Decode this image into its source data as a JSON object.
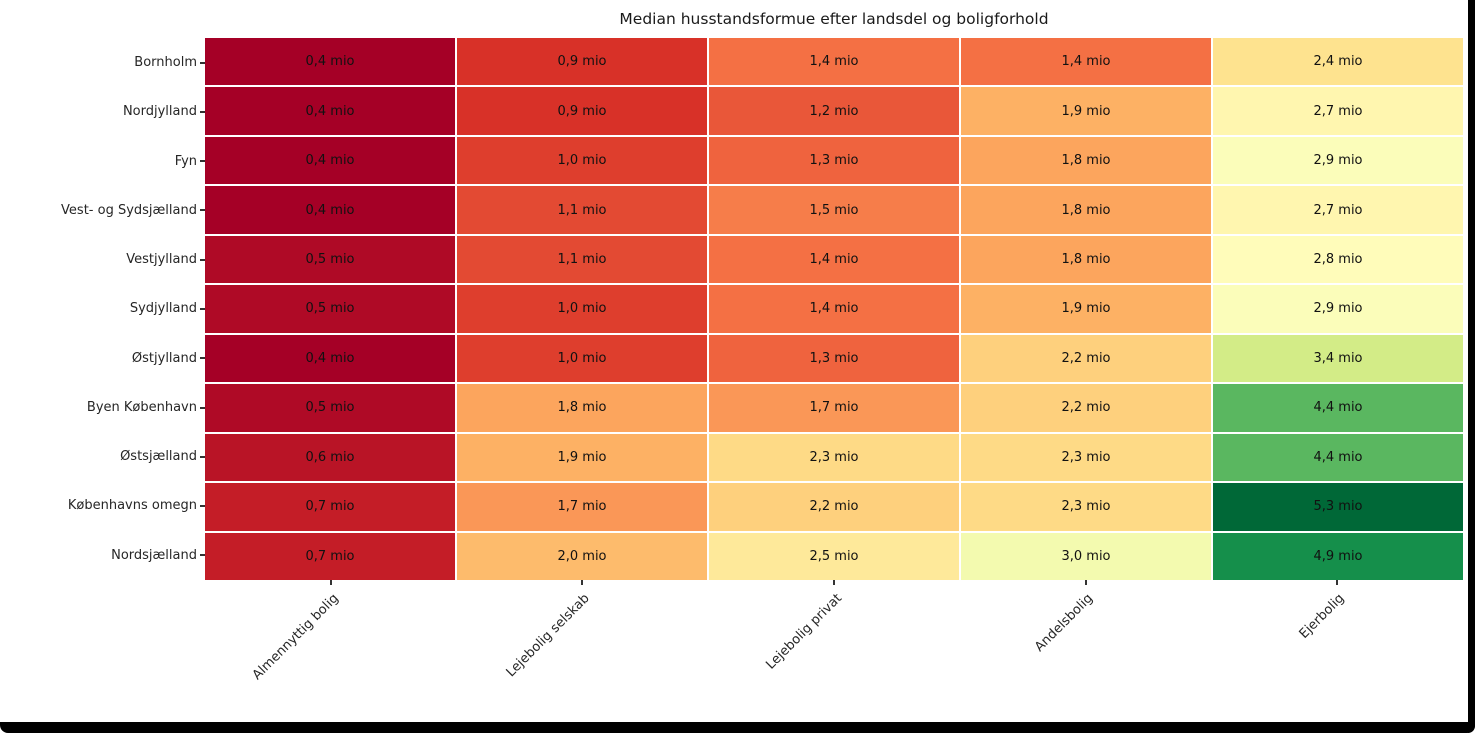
{
  "chart_data": {
    "type": "heatmap",
    "title": "Median husstandsformue efter landsdel og boligforhold",
    "rows": [
      "Bornholm",
      "Nordjylland",
      "Fyn",
      "Vest- og Sydsjælland",
      "Vestjylland",
      "Sydjylland",
      "Østjylland",
      "Byen København",
      "Østsjælland",
      "Københavns omegn",
      "Nordsjælland"
    ],
    "columns": [
      "Almennyttig bolig",
      "Lejebolig selskab",
      "Lejebolig privat",
      "Andelsbolig",
      "Ejerbolig"
    ],
    "values": [
      [
        0.4,
        0.9,
        1.4,
        1.4,
        2.4
      ],
      [
        0.4,
        0.9,
        1.2,
        1.9,
        2.7
      ],
      [
        0.4,
        1.0,
        1.3,
        1.8,
        2.9
      ],
      [
        0.4,
        1.1,
        1.5,
        1.8,
        2.7
      ],
      [
        0.5,
        1.1,
        1.4,
        1.8,
        2.8
      ],
      [
        0.5,
        1.0,
        1.4,
        1.9,
        2.9
      ],
      [
        0.4,
        1.0,
        1.3,
        2.2,
        3.4
      ],
      [
        0.5,
        1.8,
        1.7,
        2.2,
        4.4
      ],
      [
        0.6,
        1.9,
        2.3,
        2.3,
        4.4
      ],
      [
        0.7,
        1.7,
        2.2,
        2.3,
        5.3
      ],
      [
        0.7,
        2.0,
        2.5,
        3.0,
        4.9
      ]
    ],
    "value_format": {
      "decimals": 1,
      "decimal_separator": ",",
      "suffix": " mio"
    },
    "colormap": {
      "name": "RdYlGn",
      "vmin": 0.4,
      "vmax": 5.3,
      "stops": [
        "#a50026",
        "#d73027",
        "#f46d43",
        "#fdae61",
        "#fee08b",
        "#ffffbf",
        "#d9ef8b",
        "#a6d96a",
        "#66bd63",
        "#1a9850",
        "#006837"
      ]
    },
    "annotation_color": "#111111",
    "gridline_color": "#ffffff",
    "background_color": "#ffffff",
    "legend": "none",
    "grid": "off"
  },
  "frame": {
    "border_color": "#000000"
  }
}
